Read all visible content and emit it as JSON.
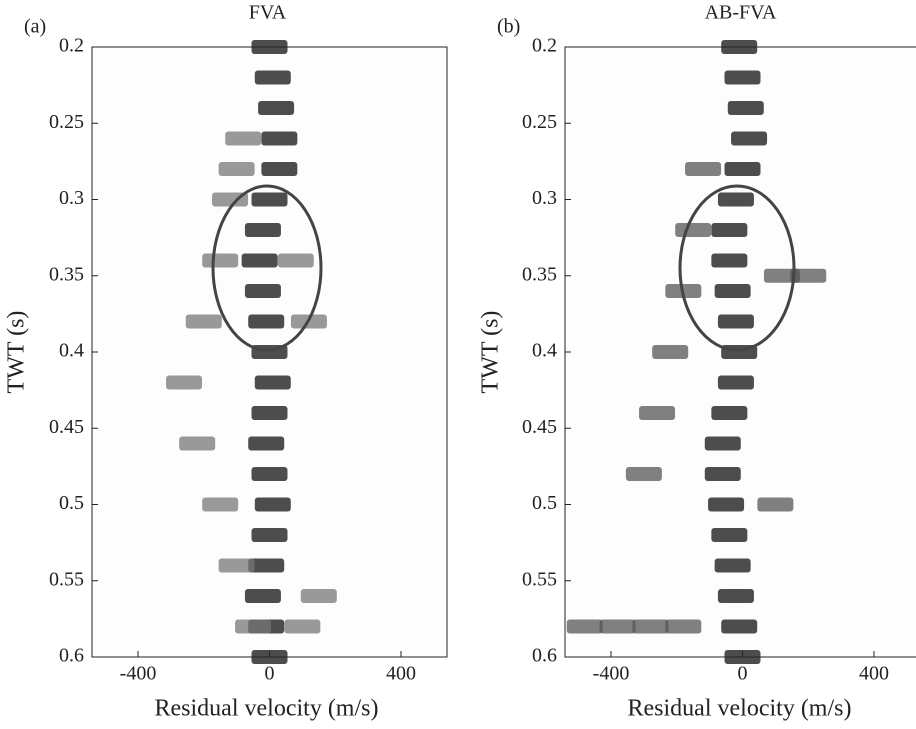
{
  "chart_data": [
    {
      "type": "scatter",
      "panel_label": "(a)",
      "title": "FVA",
      "xlabel": "Residual velocity (m/s)",
      "ylabel": "TWT (s)",
      "xlim": [
        -540,
        540
      ],
      "xticks": [
        -400,
        0,
        400
      ],
      "ylim": [
        0.2,
        0.6
      ],
      "yticks": [
        0.2,
        0.25,
        0.3,
        0.35,
        0.4,
        0.45,
        0.5,
        0.55,
        0.6
      ],
      "y_inverted": true,
      "series": [
        {
          "color": "#111111",
          "x": [
            0,
            10,
            20,
            30,
            30,
            0,
            -20,
            -30,
            -20,
            -10,
            0,
            10,
            0,
            -10,
            0,
            10,
            0,
            -10,
            -20,
            -10,
            0
          ],
          "values": [
            0.2,
            0.22,
            0.24,
            0.26,
            0.28,
            0.3,
            0.32,
            0.34,
            0.36,
            0.38,
            0.4,
            0.42,
            0.44,
            0.46,
            0.48,
            0.5,
            0.52,
            0.54,
            0.56,
            0.58,
            0.6
          ]
        },
        {
          "color": "#777777",
          "x": [
            -80,
            -100,
            -120,
            -150,
            -200,
            -260,
            -220,
            -150,
            -100,
            -50,
            80,
            120,
            150,
            100
          ],
          "values": [
            0.26,
            0.28,
            0.3,
            0.34,
            0.38,
            0.42,
            0.46,
            0.5,
            0.54,
            0.58,
            0.34,
            0.38,
            0.56,
            0.58
          ]
        }
      ]
    },
    {
      "type": "scatter",
      "panel_label": "(b)",
      "title": "AB-FVA",
      "xlabel": "Residual velocity (m/s)",
      "ylabel": "TWT (s)",
      "xlim": [
        -540,
        540
      ],
      "xticks": [
        -400,
        0,
        400
      ],
      "ylim": [
        0.2,
        0.6
      ],
      "yticks": [
        0.2,
        0.25,
        0.3,
        0.35,
        0.4,
        0.45,
        0.5,
        0.55,
        0.6
      ],
      "y_inverted": true,
      "series": [
        {
          "color": "#111111",
          "x": [
            -10,
            0,
            10,
            20,
            0,
            -20,
            -40,
            -40,
            -30,
            -20,
            -10,
            -20,
            -40,
            -60,
            -60,
            -50,
            -40,
            -30,
            -20,
            -10,
            0
          ],
          "values": [
            0.2,
            0.22,
            0.24,
            0.26,
            0.28,
            0.3,
            0.32,
            0.34,
            0.36,
            0.38,
            0.4,
            0.42,
            0.44,
            0.46,
            0.48,
            0.5,
            0.52,
            0.54,
            0.56,
            0.58,
            0.6
          ]
        },
        {
          "color": "#555555",
          "x": [
            -120,
            -150,
            -180,
            -220,
            -260,
            -300,
            -480,
            -380,
            -280,
            -180,
            120,
            200,
            100
          ],
          "values": [
            0.28,
            0.32,
            0.36,
            0.4,
            0.44,
            0.48,
            0.58,
            0.58,
            0.58,
            0.58,
            0.35,
            0.35,
            0.5
          ]
        }
      ]
    }
  ]
}
